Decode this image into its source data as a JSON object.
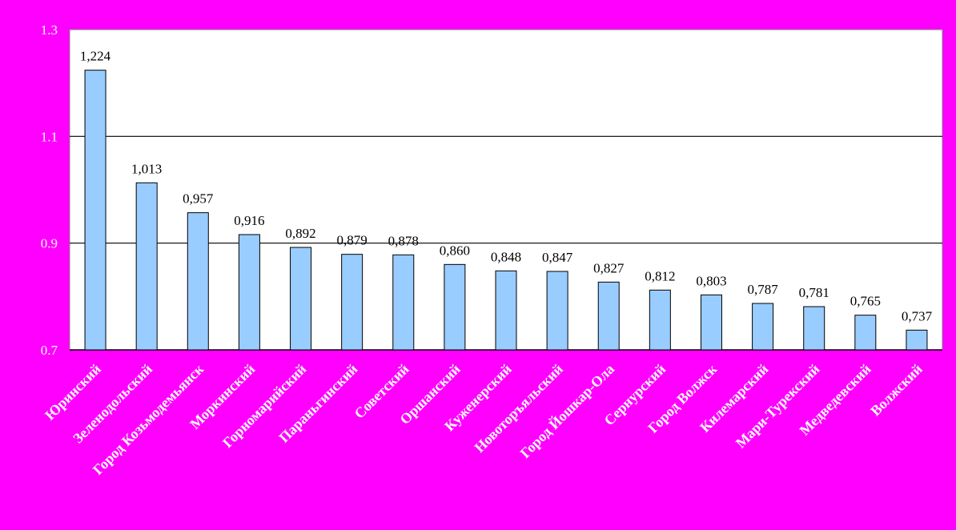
{
  "chart_data": {
    "type": "bar",
    "categories": [
      "Юринский",
      "Зеленодольский",
      "Город Козьмодемьянск",
      "Моркинский",
      "Горномарийский",
      "Параньгинский",
      "Советский",
      "Оршанский",
      "Куженерский",
      "Новоторъяльский",
      "Город Йошкар-Ола",
      "Сернурский",
      "Город Волжск",
      "Килемарский",
      "Мари-Турекский",
      "Медведевский",
      "Волжский"
    ],
    "values": [
      1.224,
      1.013,
      0.957,
      0.916,
      0.892,
      0.879,
      0.878,
      0.86,
      0.848,
      0.847,
      0.827,
      0.812,
      0.803,
      0.787,
      0.781,
      0.765,
      0.737
    ],
    "data_labels": [
      "1,224",
      "1,013",
      "0,957",
      "0,916",
      "0,892",
      "0,879",
      "0,878",
      "0,860",
      "0,848",
      "0,847",
      "0,827",
      "0,812",
      "0,803",
      "0,787",
      "0,781",
      "0,765",
      "0,737"
    ],
    "y_ticks": [
      0.7,
      0.9,
      1.1,
      1.3
    ],
    "y_tick_labels": [
      "0.7",
      "0.9",
      "1.1",
      "1.3"
    ],
    "ylim": [
      0.7,
      1.3
    ],
    "title": "",
    "xlabel": "",
    "ylabel": "",
    "grid": true,
    "legend": "none",
    "colors": {
      "background": "#ff00ff",
      "plot_area": "#ffffff",
      "bar_fill": "#99ccff",
      "bar_stroke": "#000000",
      "gridline": "#000000",
      "tick_text": "#ffffff",
      "category_text": "#ffffff",
      "data_label_text": "#000000"
    }
  }
}
